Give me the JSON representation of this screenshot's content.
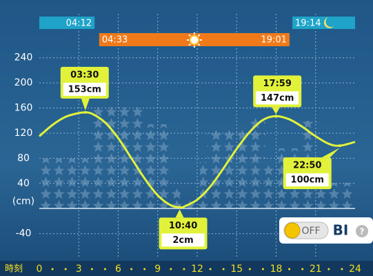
{
  "chart_data": {
    "type": "line",
    "x": [
      0,
      1,
      2,
      3,
      3.5,
      4,
      5,
      6,
      7,
      8,
      9,
      10,
      10.67,
      11,
      12,
      13,
      14,
      15,
      16,
      17,
      17.98,
      19,
      20,
      21,
      22,
      22.83,
      24
    ],
    "series": [
      {
        "color": "#e2f23a",
        "values": [
          115,
          133,
          146,
          152,
          153,
          151,
          137,
          112,
          80,
          48,
          21,
          5,
          2,
          3,
          14,
          35,
          64,
          95,
          122,
          141,
          147,
          142,
          130,
          115,
          103,
          100,
          106
        ]
      }
    ],
    "xlim": [
      0,
      24
    ],
    "xticks": [
      0,
      3,
      6,
      9,
      12,
      15,
      18,
      21,
      24
    ],
    "x_label": "時刻",
    "ylim": [
      -80,
      310
    ],
    "yticks": [
      -40,
      {
        "value": 0,
        "label": "(cm)"
      },
      40,
      80,
      120,
      160,
      200,
      240
    ],
    "grid": true,
    "extremes": {
      "x": [
        "03:30",
        "10:40",
        "17:59",
        "22:50"
      ],
      "values": [
        153,
        2,
        147,
        100
      ],
      "value_labels": [
        "153cm",
        "2cm",
        "147cm",
        "100cm"
      ]
    },
    "moon": {
      "rise": "04:12",
      "set": "19:14"
    },
    "sun": {
      "rise": "04:33",
      "set": "19:01"
    }
  },
  "toggle": {
    "state": "OFF",
    "label": "BI",
    "help": "?"
  }
}
